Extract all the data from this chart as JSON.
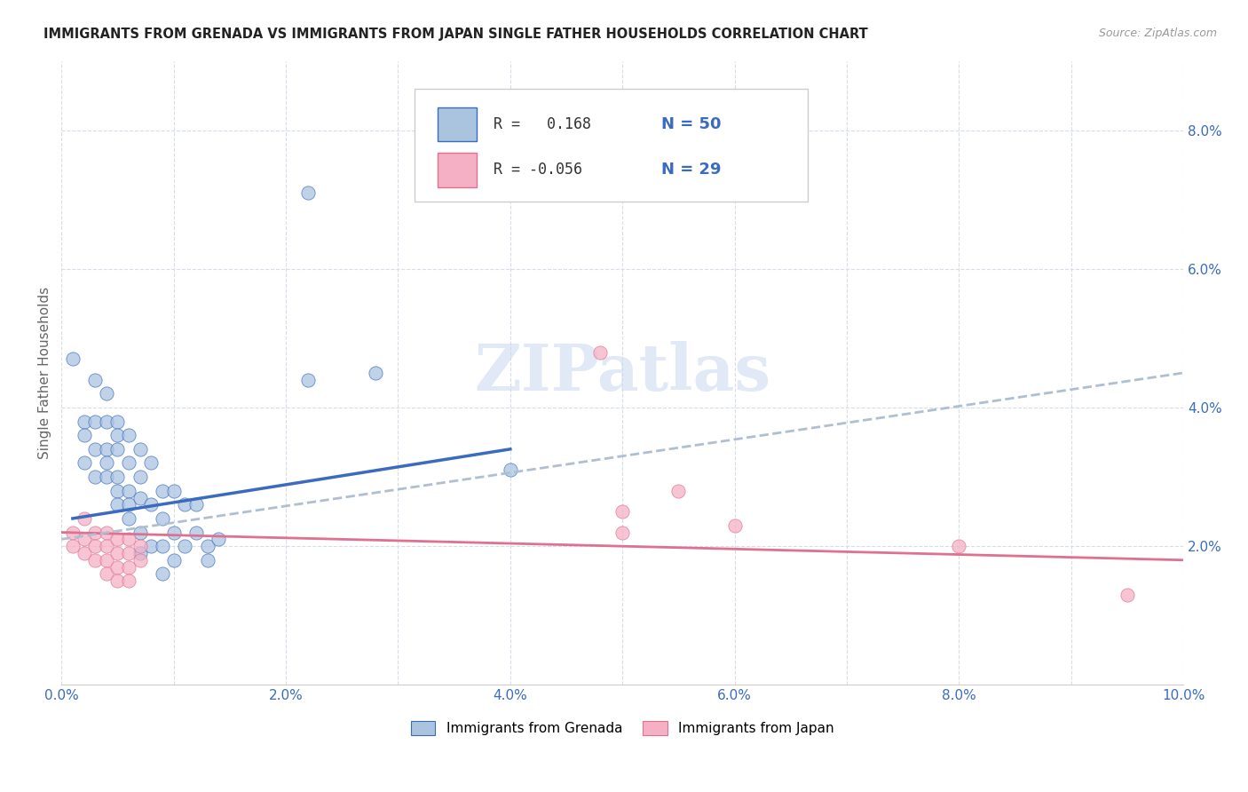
{
  "title": "IMMIGRANTS FROM GRENADA VS IMMIGRANTS FROM JAPAN SINGLE FATHER HOUSEHOLDS CORRELATION CHART",
  "source": "Source: ZipAtlas.com",
  "ylabel": "Single Father Households",
  "xlim": [
    0,
    0.1
  ],
  "ylim": [
    0,
    0.09
  ],
  "xtick_labels": [
    "0.0%",
    "",
    "2.0%",
    "",
    "4.0%",
    "",
    "6.0%",
    "",
    "8.0%",
    "",
    "10.0%"
  ],
  "xtick_vals": [
    0,
    0.01,
    0.02,
    0.03,
    0.04,
    0.05,
    0.06,
    0.07,
    0.08,
    0.09,
    0.1
  ],
  "ytick_labels": [
    "2.0%",
    "4.0%",
    "6.0%",
    "8.0%"
  ],
  "ytick_vals": [
    0.02,
    0.04,
    0.06,
    0.08
  ],
  "grenada_color": "#aac4e0",
  "japan_color": "#f5b0c5",
  "grenada_R": 0.168,
  "grenada_N": 50,
  "japan_R": -0.056,
  "japan_N": 29,
  "grenada_line_color": "#3a6bbf",
  "japan_line_color": "#e07090",
  "trend_line_color": "#b0bfd0",
  "background_color": "#ffffff",
  "grid_color": "#d8dce8",
  "watermark": "ZIPatlas",
  "legend_R1_color": "#3a6bbf",
  "legend_R2_color": "#e07090",
  "grenada_scatter": [
    [
      0.001,
      0.047
    ],
    [
      0.002,
      0.032
    ],
    [
      0.002,
      0.038
    ],
    [
      0.002,
      0.036
    ],
    [
      0.003,
      0.044
    ],
    [
      0.003,
      0.038
    ],
    [
      0.003,
      0.034
    ],
    [
      0.003,
      0.03
    ],
    [
      0.004,
      0.042
    ],
    [
      0.004,
      0.038
    ],
    [
      0.004,
      0.034
    ],
    [
      0.004,
      0.032
    ],
    [
      0.004,
      0.03
    ],
    [
      0.005,
      0.038
    ],
    [
      0.005,
      0.036
    ],
    [
      0.005,
      0.034
    ],
    [
      0.005,
      0.03
    ],
    [
      0.005,
      0.028
    ],
    [
      0.005,
      0.026
    ],
    [
      0.006,
      0.036
    ],
    [
      0.006,
      0.032
    ],
    [
      0.006,
      0.028
    ],
    [
      0.006,
      0.026
    ],
    [
      0.006,
      0.024
    ],
    [
      0.007,
      0.034
    ],
    [
      0.007,
      0.03
    ],
    [
      0.007,
      0.027
    ],
    [
      0.007,
      0.022
    ],
    [
      0.007,
      0.019
    ],
    [
      0.008,
      0.032
    ],
    [
      0.008,
      0.026
    ],
    [
      0.008,
      0.02
    ],
    [
      0.009,
      0.028
    ],
    [
      0.009,
      0.024
    ],
    [
      0.009,
      0.02
    ],
    [
      0.009,
      0.016
    ],
    [
      0.01,
      0.028
    ],
    [
      0.01,
      0.022
    ],
    [
      0.01,
      0.018
    ],
    [
      0.011,
      0.026
    ],
    [
      0.011,
      0.02
    ],
    [
      0.012,
      0.026
    ],
    [
      0.012,
      0.022
    ],
    [
      0.013,
      0.02
    ],
    [
      0.013,
      0.018
    ],
    [
      0.014,
      0.021
    ],
    [
      0.022,
      0.071
    ],
    [
      0.022,
      0.044
    ],
    [
      0.028,
      0.045
    ],
    [
      0.04,
      0.031
    ]
  ],
  "japan_scatter": [
    [
      0.001,
      0.022
    ],
    [
      0.001,
      0.02
    ],
    [
      0.002,
      0.024
    ],
    [
      0.002,
      0.021
    ],
    [
      0.002,
      0.019
    ],
    [
      0.003,
      0.022
    ],
    [
      0.003,
      0.02
    ],
    [
      0.003,
      0.018
    ],
    [
      0.004,
      0.022
    ],
    [
      0.004,
      0.02
    ],
    [
      0.004,
      0.018
    ],
    [
      0.004,
      0.016
    ],
    [
      0.005,
      0.021
    ],
    [
      0.005,
      0.019
    ],
    [
      0.005,
      0.017
    ],
    [
      0.005,
      0.015
    ],
    [
      0.006,
      0.021
    ],
    [
      0.006,
      0.019
    ],
    [
      0.006,
      0.017
    ],
    [
      0.006,
      0.015
    ],
    [
      0.007,
      0.02
    ],
    [
      0.007,
      0.018
    ],
    [
      0.048,
      0.048
    ],
    [
      0.05,
      0.025
    ],
    [
      0.05,
      0.022
    ],
    [
      0.055,
      0.028
    ],
    [
      0.06,
      0.023
    ],
    [
      0.08,
      0.02
    ],
    [
      0.095,
      0.013
    ]
  ],
  "grenada_trend_x": [
    0.001,
    0.04
  ],
  "grenada_trend_y": [
    0.024,
    0.034
  ],
  "japan_trend_x": [
    0.0,
    0.1
  ],
  "japan_trend_y": [
    0.022,
    0.018
  ],
  "gray_trend_x": [
    0.0,
    0.1
  ],
  "gray_trend_y": [
    0.021,
    0.045
  ]
}
